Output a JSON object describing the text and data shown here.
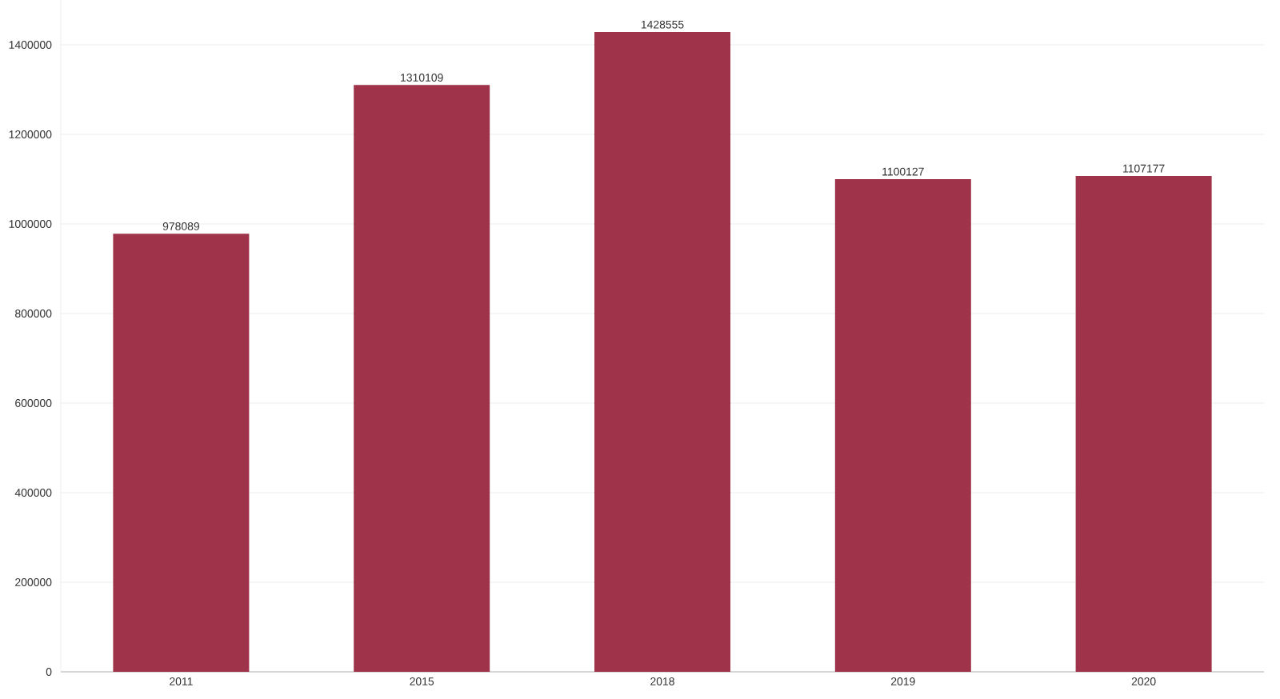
{
  "chart_data": {
    "type": "bar",
    "categories": [
      "2011",
      "2015",
      "2018",
      "2019",
      "2020"
    ],
    "values": [
      978089,
      1310109,
      1428555,
      1100127,
      1107177
    ],
    "color": "#9e3349",
    "ylim": [
      0,
      1500000
    ],
    "yticks": [
      0,
      200000,
      400000,
      600000,
      800000,
      1000000,
      1200000,
      1400000
    ],
    "grid": "y",
    "data_labels": true
  }
}
